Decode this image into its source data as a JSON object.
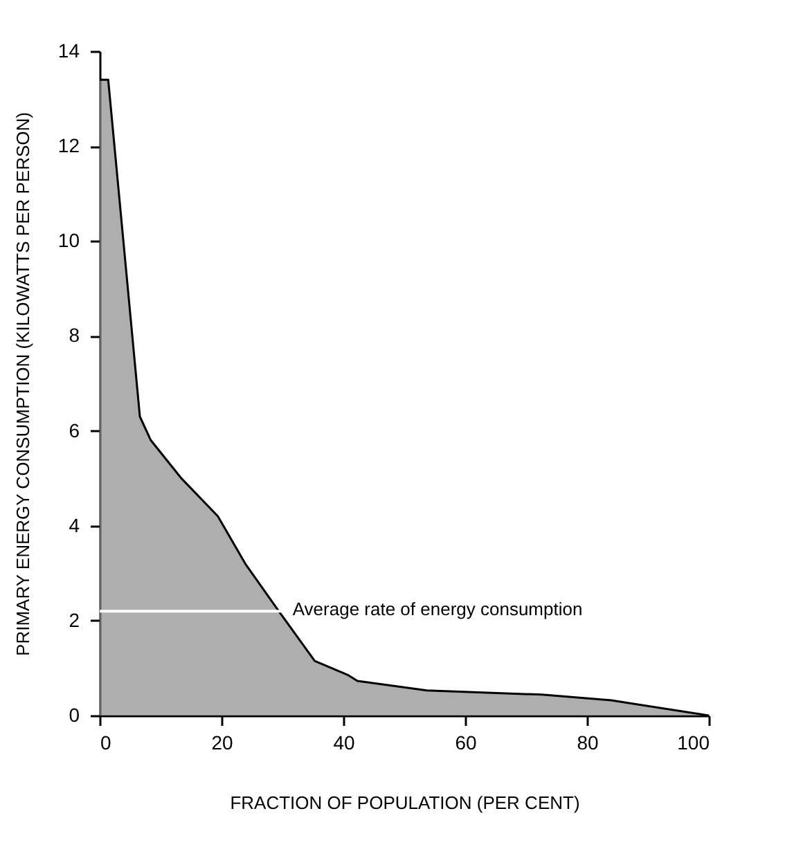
{
  "chart_data": {
    "type": "area",
    "xlabel": "FRACTION OF POPULATION (PER CENT)",
    "ylabel": "PRIMARY ENERGY CONSUMPTION (KILOWATTS PER PERSON)",
    "x": [
      0,
      1.4,
      6.6,
      8.4,
      13.4,
      19.4,
      23.9,
      29.4,
      35.3,
      40.8,
      42.3,
      53.7,
      72.6,
      84,
      100
    ],
    "series": [
      {
        "color": "#8c8c8c",
        "values": [
          13.4,
          13.4,
          6.3,
          5.8,
          5.0,
          4.2,
          3.2,
          2.2,
          1.15,
          0.85,
          0.73,
          0.53,
          0.44,
          0.32,
          0
        ]
      }
    ],
    "xlim": [
      0,
      100
    ],
    "xticks": [
      0,
      20,
      40,
      60,
      80,
      100
    ],
    "ylim": [
      0,
      14
    ],
    "yticks": [
      0,
      2,
      4,
      6,
      8,
      10,
      12,
      14
    ],
    "ref_lines": [
      {
        "axis": "y",
        "value": 2.2,
        "label": "Average rate of energy consumption",
        "color": "#ffffff"
      }
    ]
  }
}
